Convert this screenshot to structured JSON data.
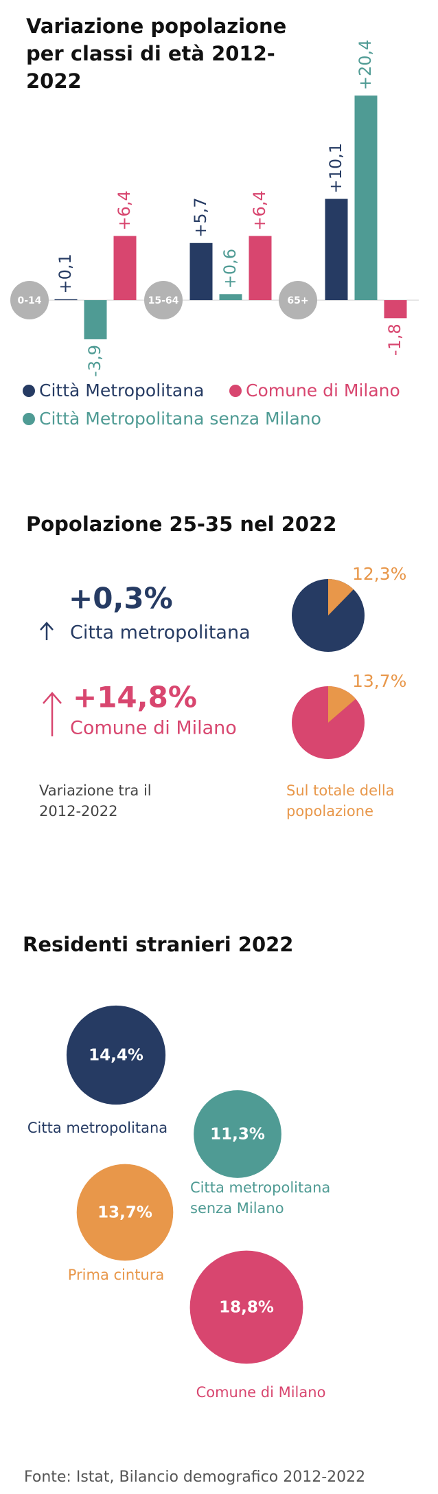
{
  "chart_data": [
    {
      "type": "bar",
      "title": "Variazione popolazione per classi di età 2012-2022",
      "categories": [
        "0-14",
        "15-64",
        "65+"
      ],
      "series": [
        {
          "name": "Città Metropolitana",
          "color": "#263b63",
          "values": [
            0.1,
            5.7,
            10.1
          ],
          "value_labels": [
            "+0,1",
            "+5,7",
            "+10,1"
          ]
        },
        {
          "name": "Città Metropolitana senza Milano",
          "color": "#4f9b94",
          "values": [
            -3.9,
            0.6,
            20.4
          ],
          "value_labels": [
            "-3,9",
            "+0,6",
            "+20,4"
          ]
        },
        {
          "name": "Comune di Milano",
          "color": "#d8466f",
          "values": [
            6.4,
            6.4,
            -1.8
          ],
          "value_labels": [
            "+6,4",
            "+6,4",
            "-1,8"
          ]
        }
      ]
    },
    {
      "type": "pie",
      "title": "Popolazione 25-35 nel 2022",
      "categories": [
        "Citta metropolitana",
        "Comune di Milano"
      ],
      "colors": [
        "#263b63",
        "#d8466f"
      ],
      "slice_color": "#e8974a",
      "values": [
        12.3,
        13.7
      ],
      "value_labels": [
        "12,3%",
        "13,7%"
      ],
      "change_labels": [
        "+0,3%",
        "+14,8%"
      ],
      "change_note": "Variazione tra il 2012-2022",
      "share_note": "Sul totale della popolazione"
    },
    {
      "type": "bubble",
      "title": "Residenti stranieri 2022",
      "categories": [
        "Citta metropolitana",
        "Citta metropolitana senza Milano",
        "Prima cintura",
        "Comune di Milano"
      ],
      "values": [
        14.4,
        11.3,
        13.7,
        18.8
      ],
      "value_labels": [
        "14,4%",
        "11,3%",
        "13,7%",
        "18,8%"
      ],
      "colors": [
        "#263b63",
        "#4f9b94",
        "#e8974a",
        "#d8466f"
      ]
    }
  ],
  "source": "Fonte: Istat, Bilancio demografico 2012-2022"
}
